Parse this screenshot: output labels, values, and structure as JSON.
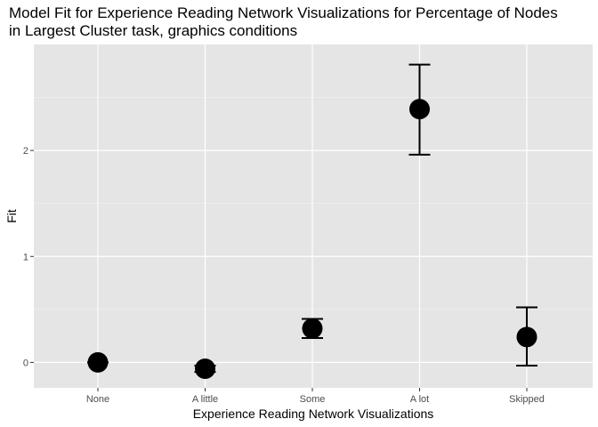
{
  "chart_data": {
    "type": "scatter",
    "title": "Model Fit for Experience Reading Network Visualizations for Percentage of Nodes\nin Largest Cluster task, graphics conditions",
    "title_lines": [
      "Model Fit for Experience Reading Network Visualizations for Percentage of Nodes",
      "in Largest Cluster task, graphics conditions"
    ],
    "xlabel": "Experience Reading Network Visualizations",
    "ylabel": "Fit",
    "categories": [
      "None",
      "A little",
      "Some",
      "A lot",
      "Skipped"
    ],
    "series": [
      {
        "values": [
          0.0,
          -0.06,
          0.32,
          2.39,
          0.24
        ],
        "lower": [
          0.0,
          -0.09,
          0.23,
          1.96,
          -0.03
        ],
        "upper": [
          0.0,
          -0.03,
          0.41,
          2.81,
          0.52
        ]
      }
    ],
    "yticks": [
      "0",
      "1",
      "2"
    ],
    "ytick_values": [
      0,
      1,
      2
    ],
    "ylim": [
      -0.24,
      3.0
    ],
    "grid": true,
    "legend": "none",
    "colors": {
      "panel": "#e5e5e5",
      "grid_major": "#ffffff",
      "point": "#000000",
      "tick_text": "#4d4d4d"
    }
  }
}
